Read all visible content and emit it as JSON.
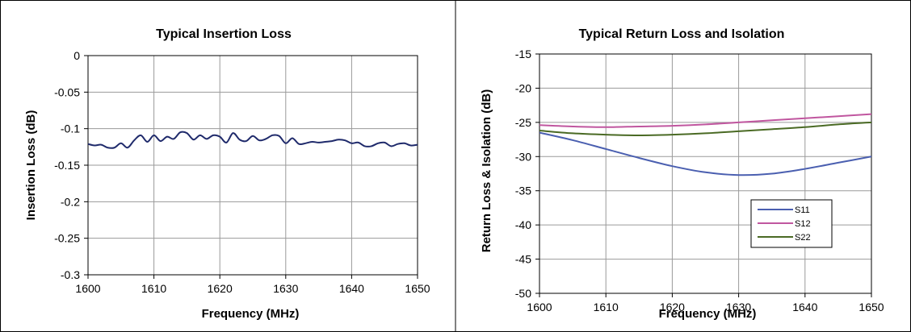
{
  "chart_data": [
    {
      "type": "line",
      "title": "Typical Insertion Loss",
      "xlabel": "Frequency (MHz)",
      "ylabel": "Insertion Loss (dB)",
      "xlim": [
        1600,
        1650
      ],
      "ylim": [
        -0.3,
        0
      ],
      "x_ticks": [
        "1600",
        "1610",
        "1620",
        "1630",
        "1640",
        "1650"
      ],
      "y_ticks": [
        "0",
        "-0.05",
        "-0.1",
        "-0.15",
        "-0.2",
        "-0.25",
        "-0.3"
      ],
      "grid": true,
      "series": [
        {
          "color": "#1f2a6b",
          "x": [
            1600,
            1601,
            1602,
            1603,
            1604,
            1605,
            1606,
            1607,
            1608,
            1609,
            1610,
            1611,
            1612,
            1613,
            1614,
            1615,
            1616,
            1617,
            1618,
            1619,
            1620,
            1621,
            1622,
            1623,
            1624,
            1625,
            1626,
            1627,
            1628,
            1629,
            1630,
            1631,
            1632,
            1633,
            1634,
            1635,
            1636,
            1637,
            1638,
            1639,
            1640,
            1641,
            1642,
            1643,
            1644,
            1645,
            1646,
            1647,
            1648,
            1649,
            1650
          ],
          "y": [
            -0.121,
            -0.123,
            -0.122,
            -0.126,
            -0.126,
            -0.12,
            -0.126,
            -0.116,
            -0.109,
            -0.118,
            -0.109,
            -0.117,
            -0.111,
            -0.114,
            -0.105,
            -0.106,
            -0.115,
            -0.109,
            -0.114,
            -0.109,
            -0.111,
            -0.119,
            -0.106,
            -0.115,
            -0.117,
            -0.11,
            -0.116,
            -0.114,
            -0.109,
            -0.11,
            -0.12,
            -0.113,
            -0.121,
            -0.12,
            -0.118,
            -0.119,
            -0.118,
            -0.117,
            -0.115,
            -0.116,
            -0.12,
            -0.119,
            -0.124,
            -0.124,
            -0.12,
            -0.119,
            -0.124,
            -0.121,
            -0.12,
            -0.123,
            -0.122
          ]
        }
      ]
    },
    {
      "type": "line",
      "title": "Typical Return Loss and Isolation",
      "xlabel": "Frequency (MHz)",
      "ylabel": "Return Loss & Isolation (dB)",
      "xlim": [
        1600,
        1650
      ],
      "ylim": [
        -50,
        -15
      ],
      "x_ticks": [
        "1600",
        "1610",
        "1620",
        "1630",
        "1640",
        "1650"
      ],
      "y_ticks": [
        "-15",
        "-20",
        "-25",
        "-30",
        "-35",
        "-40",
        "-45",
        "-50"
      ],
      "grid": true,
      "legend": "bottom-right",
      "series": [
        {
          "name": "S11",
          "color": "#4a5fb0",
          "x": [
            1600,
            1605,
            1610,
            1615,
            1620,
            1625,
            1630,
            1635,
            1640,
            1645,
            1650
          ],
          "y": [
            -26.5,
            -27.6,
            -28.9,
            -30.2,
            -31.4,
            -32.3,
            -32.7,
            -32.5,
            -31.8,
            -30.9,
            -30.0
          ]
        },
        {
          "name": "S12",
          "color": "#c0569f",
          "x": [
            1600,
            1605,
            1610,
            1615,
            1620,
            1625,
            1630,
            1635,
            1640,
            1645,
            1650
          ],
          "y": [
            -25.4,
            -25.6,
            -25.7,
            -25.6,
            -25.5,
            -25.3,
            -25.0,
            -24.7,
            -24.4,
            -24.1,
            -23.8
          ]
        },
        {
          "name": "S22",
          "color": "#4a6a24",
          "x": [
            1600,
            1605,
            1610,
            1615,
            1620,
            1625,
            1630,
            1635,
            1640,
            1645,
            1650
          ],
          "y": [
            -26.2,
            -26.6,
            -26.8,
            -26.9,
            -26.8,
            -26.6,
            -26.3,
            -26.0,
            -25.7,
            -25.3,
            -25.0
          ]
        }
      ]
    }
  ]
}
